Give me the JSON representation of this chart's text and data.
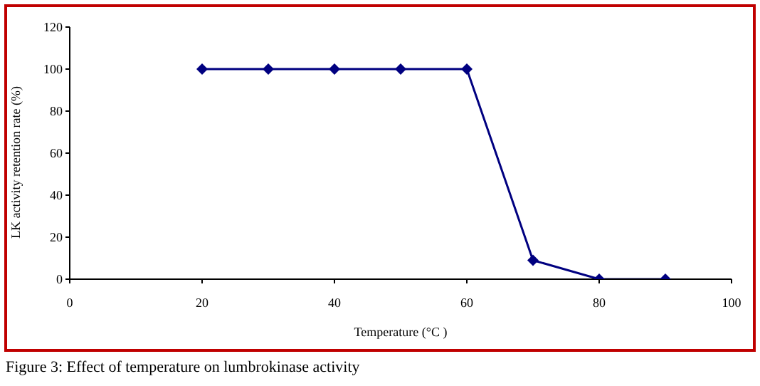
{
  "chart_data": {
    "type": "line",
    "xlabel": "Temperature (°C )",
    "ylabel": "LK activity retention rate (%)",
    "x": [
      20,
      30,
      40,
      50,
      60,
      70,
      80,
      90
    ],
    "series": [
      {
        "color": "#000080",
        "values": [
          100,
          100,
          100,
          100,
          100,
          9,
          0,
          0
        ]
      }
    ],
    "xlim": [
      0,
      100
    ],
    "xticks": [
      0,
      20,
      40,
      60,
      80,
      100
    ],
    "ylim": [
      0,
      120
    ],
    "yticks": [
      0,
      20,
      40,
      60,
      80,
      100,
      120
    ],
    "grid": false,
    "legend": false,
    "marker": "diamond",
    "line_style": "solid",
    "annotations": [
      "Figure 3: Effect of temperature on lumbrokinase activity"
    ]
  }
}
